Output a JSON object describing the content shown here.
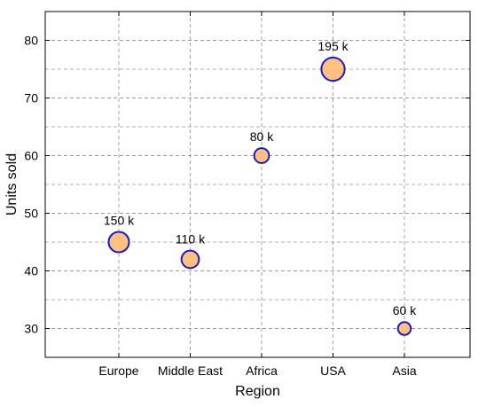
{
  "chart_data": {
    "type": "scatter",
    "subtype": "bubble",
    "xlabel": "Region",
    "ylabel": "Units sold",
    "categories": [
      "Europe",
      "Middle East",
      "Africa",
      "USA",
      "Asia"
    ],
    "values": [
      45,
      42,
      60,
      75,
      30
    ],
    "sizes": [
      150,
      110,
      80,
      195,
      60
    ],
    "labels": [
      "150 k",
      "110 k",
      "80 k",
      "195 k",
      "60 k"
    ],
    "ylim": [
      25,
      85
    ],
    "yticks": [
      30,
      40,
      50,
      60,
      70,
      80
    ],
    "grid": true,
    "legend": "none",
    "colors": {
      "bubble_fill": "#ffc080",
      "bubble_stroke": "#1a1acc",
      "grid": "#999999",
      "axis": "#000000"
    }
  }
}
